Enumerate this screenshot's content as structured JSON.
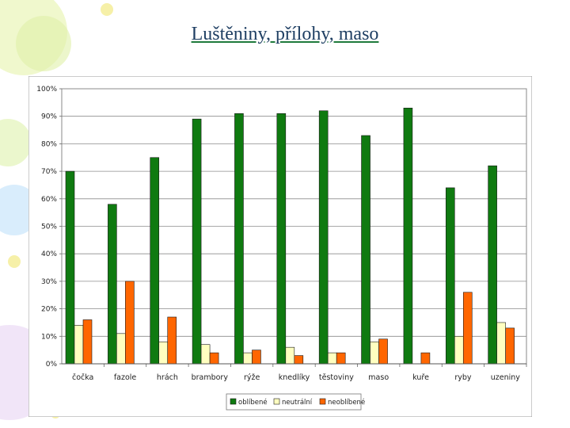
{
  "slide": {
    "title": "Luštěniny, přílohy, maso"
  },
  "chart_data": {
    "type": "bar",
    "title": "Luštěniny, přílohy, maso",
    "categories": [
      "čočka",
      "fazole",
      "hrách",
      "brambory",
      "rýže",
      "knedlíky",
      "těstoviny",
      "maso",
      "kuře",
      "ryby",
      "uzeniny"
    ],
    "series": [
      {
        "name": "oblíbené",
        "color": "#0f7a10",
        "values": [
          70,
          58,
          75,
          89,
          91,
          91,
          92,
          83,
          93,
          64,
          72
        ]
      },
      {
        "name": "neutrální",
        "color": "#ffffc0",
        "values": [
          14,
          11,
          8,
          7,
          4,
          6,
          4,
          8,
          0,
          10,
          15
        ]
      },
      {
        "name": "neoblíbené",
        "color": "#ff6600",
        "values": [
          16,
          30,
          17,
          4,
          5,
          3,
          4,
          9,
          4,
          26,
          13
        ]
      }
    ],
    "ylim": [
      0,
      100
    ],
    "yticks": [
      "0%",
      "10%",
      "20%",
      "30%",
      "40%",
      "50%",
      "60%",
      "70%",
      "80%",
      "90%",
      "100%"
    ],
    "xlabel": "",
    "ylabel": "",
    "grid": true,
    "legend_position": "bottom"
  }
}
